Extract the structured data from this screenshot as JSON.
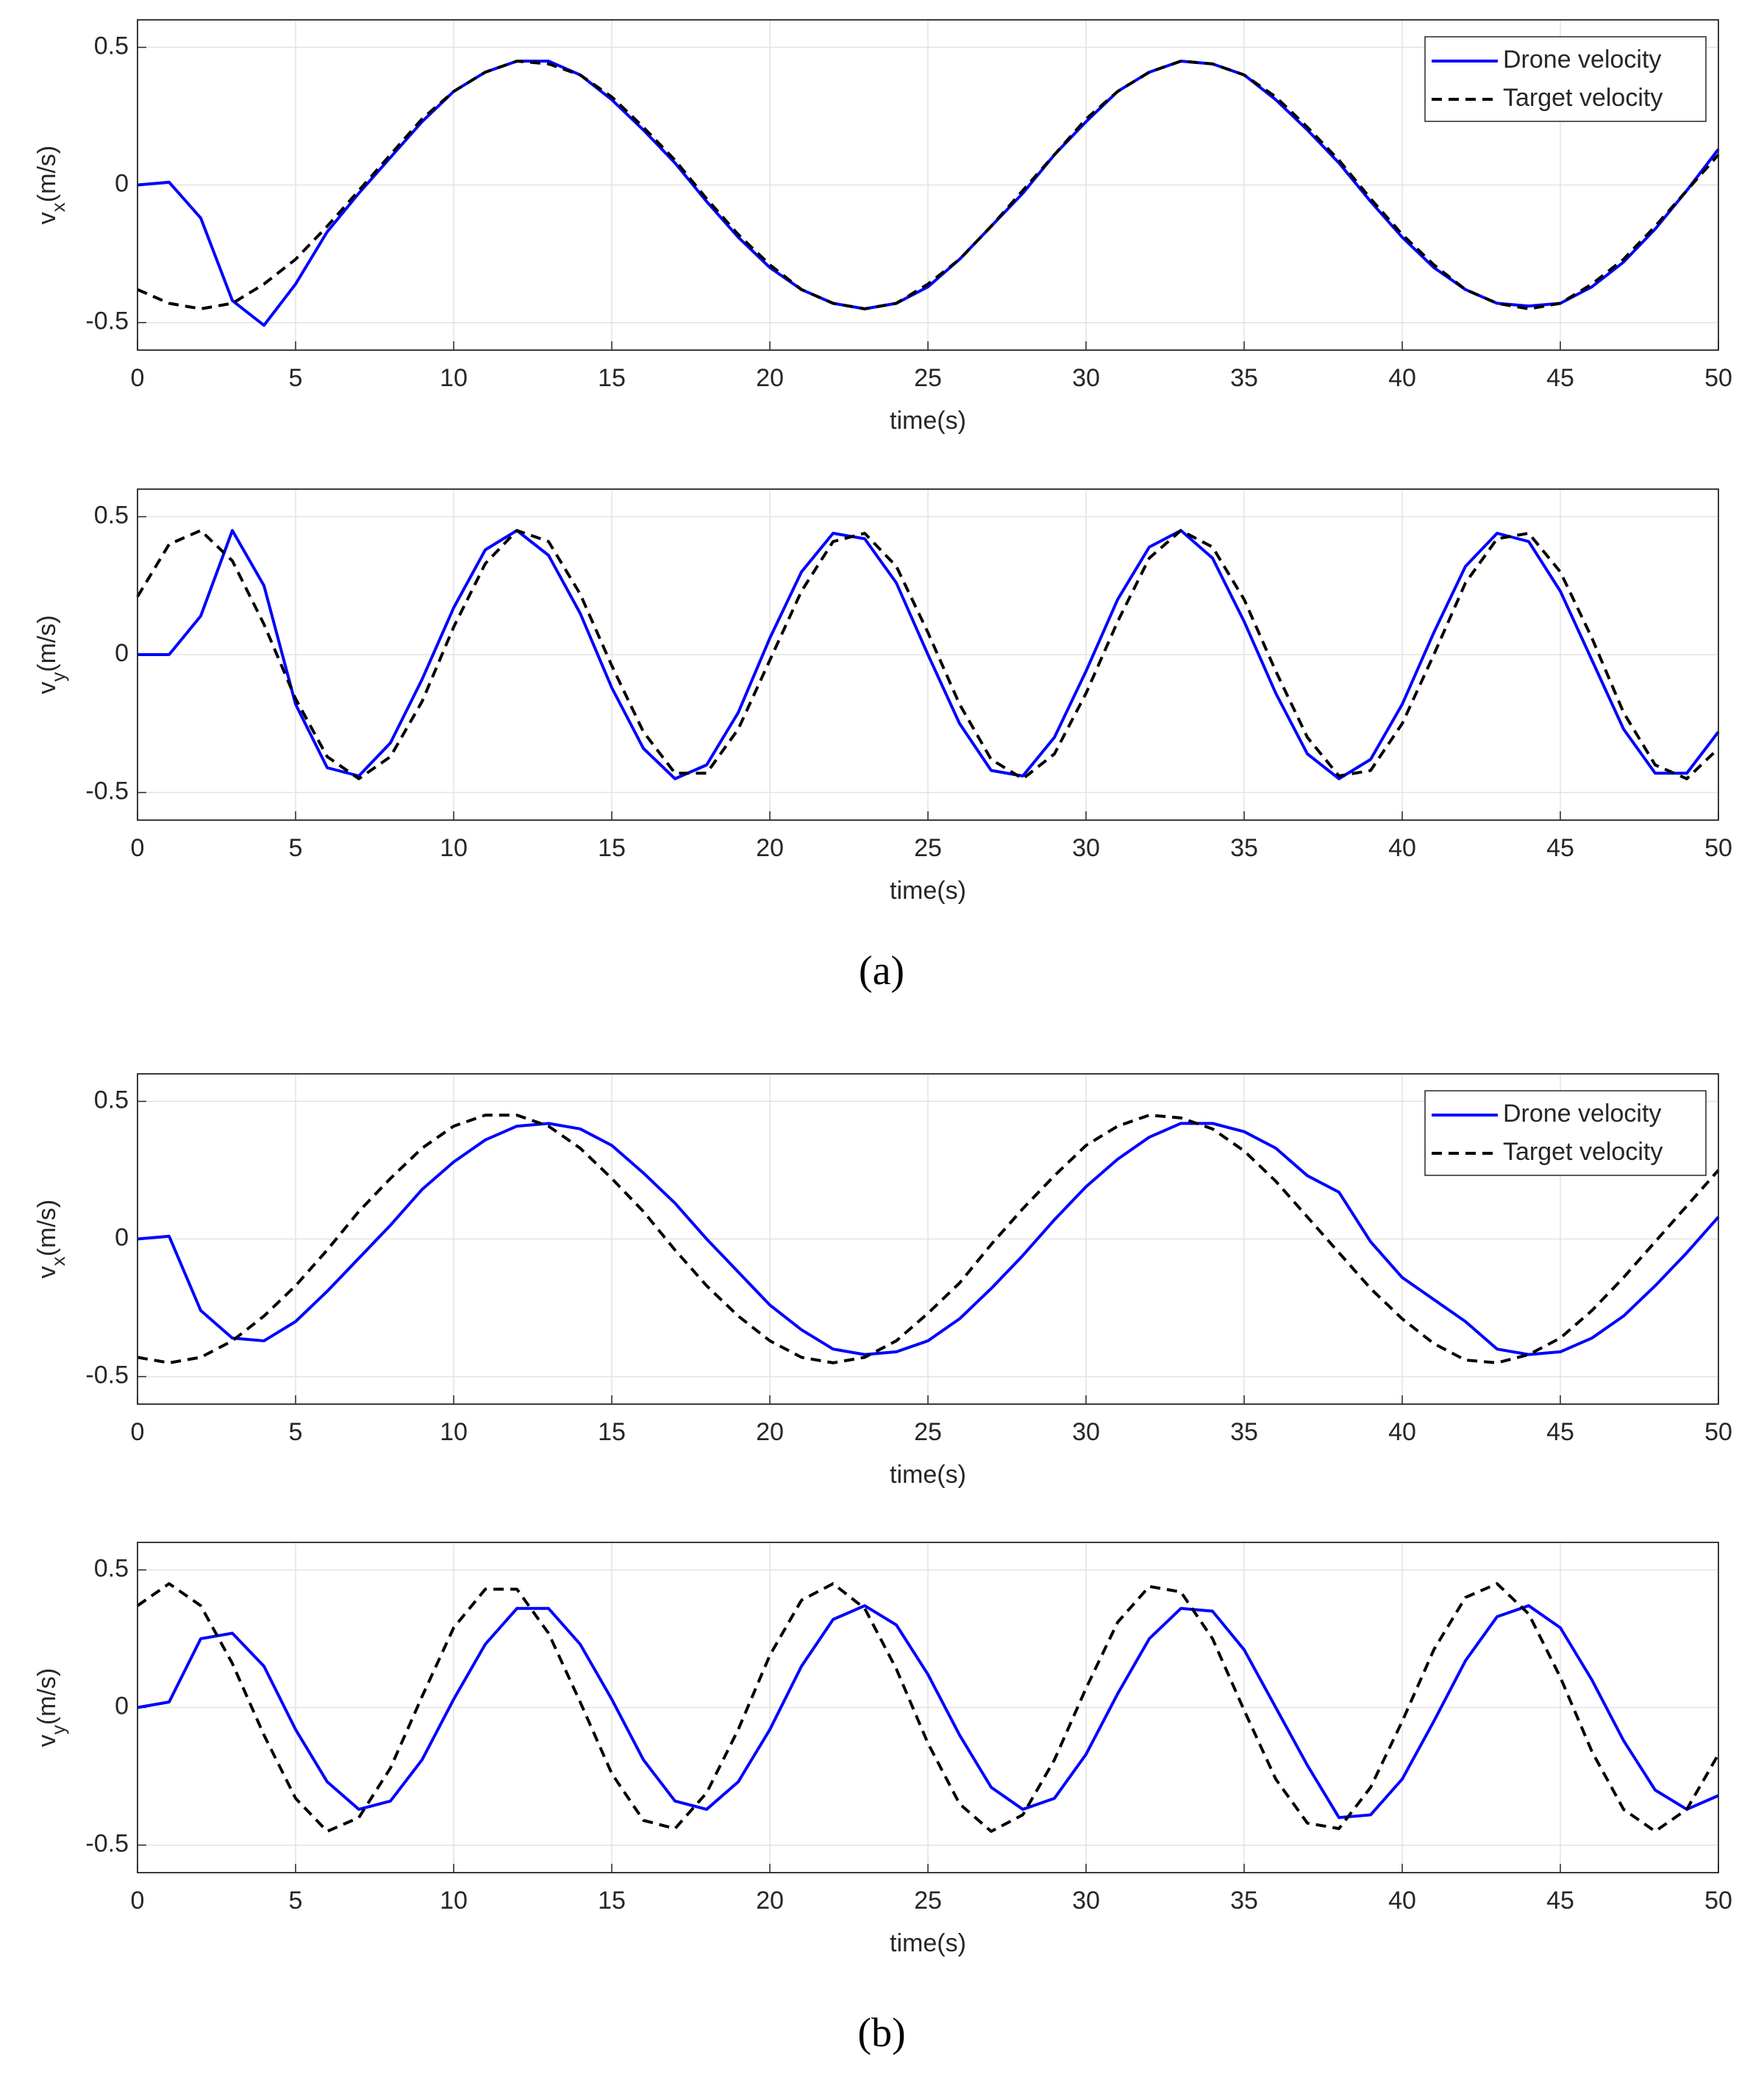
{
  "chart_data": [
    {
      "type": "line",
      "xlabel": "time(s)",
      "ylabel": [
        "v",
        "x",
        "(m/s)"
      ],
      "x": [
        0,
        1,
        2,
        3,
        4,
        5,
        6,
        7,
        8,
        9,
        10,
        11,
        12,
        13,
        14,
        15,
        16,
        17,
        18,
        19,
        20,
        21,
        22,
        23,
        24,
        25,
        26,
        27,
        28,
        29,
        30,
        31,
        32,
        33,
        34,
        35,
        36,
        37,
        38,
        39,
        40,
        41,
        42,
        43,
        44,
        45,
        46,
        47,
        48,
        49,
        50
      ],
      "xlim": [
        0,
        50
      ],
      "xticks": [
        0,
        5,
        10,
        15,
        20,
        25,
        30,
        35,
        40,
        45,
        50
      ],
      "ylim": [
        -0.6,
        0.6
      ],
      "yticks": [
        -0.5,
        0,
        0.5
      ],
      "grid": true,
      "legend": "upper right",
      "series": [
        {
          "name": "Drone velocity",
          "color": "#0000ff",
          "linestyle": "solid",
          "values": [
            0,
            0.01,
            -0.12,
            -0.42,
            -0.51,
            -0.36,
            -0.17,
            -0.03,
            0.1,
            0.23,
            0.34,
            0.41,
            0.45,
            0.45,
            0.4,
            0.31,
            0.2,
            0.08,
            -0.06,
            -0.19,
            -0.3,
            -0.38,
            -0.43,
            -0.45,
            -0.43,
            -0.37,
            -0.27,
            -0.15,
            -0.03,
            0.11,
            0.23,
            0.34,
            0.41,
            0.45,
            0.44,
            0.4,
            0.31,
            0.2,
            0.08,
            -0.06,
            -0.19,
            -0.3,
            -0.38,
            -0.43,
            -0.44,
            -0.43,
            -0.37,
            -0.28,
            -0.16,
            -0.02,
            0.13
          ]
        },
        {
          "name": "Target velocity",
          "color": "#000000",
          "linestyle": "dashed",
          "values": [
            -0.38,
            -0.43,
            -0.45,
            -0.43,
            -0.36,
            -0.27,
            -0.15,
            -0.02,
            0.11,
            0.24,
            0.34,
            0.41,
            0.45,
            0.44,
            0.4,
            0.32,
            0.21,
            0.09,
            -0.05,
            -0.18,
            -0.29,
            -0.38,
            -0.43,
            -0.45,
            -0.43,
            -0.36,
            -0.27,
            -0.15,
            -0.02,
            0.11,
            0.24,
            0.34,
            0.41,
            0.45,
            0.44,
            0.4,
            0.32,
            0.21,
            0.09,
            -0.05,
            -0.18,
            -0.29,
            -0.38,
            -0.43,
            -0.45,
            -0.43,
            -0.36,
            -0.27,
            -0.15,
            -0.02,
            0.11
          ]
        }
      ]
    },
    {
      "type": "line",
      "xlabel": "time(s)",
      "ylabel": [
        "v",
        "y",
        "(m/s)"
      ],
      "x": [
        0,
        1,
        2,
        3,
        4,
        5,
        6,
        7,
        8,
        9,
        10,
        11,
        12,
        13,
        14,
        15,
        16,
        17,
        18,
        19,
        20,
        21,
        22,
        23,
        24,
        25,
        26,
        27,
        28,
        29,
        30,
        31,
        32,
        33,
        34,
        35,
        36,
        37,
        38,
        39,
        40,
        41,
        42,
        43,
        44,
        45,
        46,
        47,
        48,
        49,
        50
      ],
      "xlim": [
        0,
        50
      ],
      "xticks": [
        0,
        5,
        10,
        15,
        20,
        25,
        30,
        35,
        40,
        45,
        50
      ],
      "ylim": [
        -0.6,
        0.6
      ],
      "yticks": [
        -0.5,
        0,
        0.5
      ],
      "grid": true,
      "series": [
        {
          "color": "#0000ff",
          "linestyle": "solid",
          "values": [
            0,
            0.0,
            0.14,
            0.45,
            0.25,
            -0.18,
            -0.41,
            -0.44,
            -0.32,
            -0.09,
            0.17,
            0.38,
            0.45,
            0.36,
            0.15,
            -0.12,
            -0.34,
            -0.45,
            -0.4,
            -0.21,
            0.06,
            0.3,
            0.44,
            0.42,
            0.26,
            0.0,
            -0.25,
            -0.42,
            -0.44,
            -0.3,
            -0.06,
            0.2,
            0.39,
            0.45,
            0.35,
            0.12,
            -0.14,
            -0.36,
            -0.45,
            -0.38,
            -0.18,
            0.08,
            0.32,
            0.44,
            0.41,
            0.23,
            -0.02,
            -0.27,
            -0.43,
            -0.43,
            -0.28
          ]
        },
        {
          "color": "#000000",
          "linestyle": "dashed",
          "values": [
            0.21,
            0.4,
            0.45,
            0.34,
            0.11,
            -0.16,
            -0.37,
            -0.45,
            -0.37,
            -0.17,
            0.1,
            0.33,
            0.45,
            0.41,
            0.22,
            -0.04,
            -0.28,
            -0.43,
            -0.43,
            -0.27,
            -0.02,
            0.23,
            0.41,
            0.44,
            0.32,
            0.08,
            -0.18,
            -0.38,
            -0.45,
            -0.36,
            -0.14,
            0.12,
            0.35,
            0.45,
            0.39,
            0.2,
            -0.06,
            -0.3,
            -0.44,
            -0.42,
            -0.25,
            0.0,
            0.26,
            0.42,
            0.44,
            0.3,
            0.06,
            -0.21,
            -0.4,
            -0.45,
            -0.34
          ]
        }
      ]
    },
    {
      "type": "line",
      "xlabel": "time(s)",
      "ylabel": [
        "v",
        "x",
        "(m/s)"
      ],
      "x": [
        0,
        1,
        2,
        3,
        4,
        5,
        6,
        7,
        8,
        9,
        10,
        11,
        12,
        13,
        14,
        15,
        16,
        17,
        18,
        19,
        20,
        21,
        22,
        23,
        24,
        25,
        26,
        27,
        28,
        29,
        30,
        31,
        32,
        33,
        34,
        35,
        36,
        37,
        38,
        39,
        40,
        41,
        42,
        43,
        44,
        45,
        46,
        47,
        48,
        49,
        50
      ],
      "xlim": [
        0,
        50
      ],
      "xticks": [
        0,
        5,
        10,
        15,
        20,
        25,
        30,
        35,
        40,
        45,
        50
      ],
      "ylim": [
        -0.6,
        0.6
      ],
      "yticks": [
        -0.5,
        0,
        0.5
      ],
      "grid": true,
      "legend": "upper right",
      "series": [
        {
          "name": "Drone velocity",
          "color": "#0000ff",
          "linestyle": "solid",
          "values": [
            0,
            0.01,
            -0.26,
            -0.36,
            -0.37,
            -0.3,
            -0.19,
            -0.07,
            0.05,
            0.18,
            0.28,
            0.36,
            0.41,
            0.42,
            0.4,
            0.34,
            0.24,
            0.13,
            0.0,
            -0.12,
            -0.24,
            -0.33,
            -0.4,
            -0.42,
            -0.41,
            -0.37,
            -0.29,
            -0.18,
            -0.06,
            0.07,
            0.19,
            0.29,
            0.37,
            0.42,
            0.42,
            0.39,
            0.33,
            0.23,
            0.17,
            -0.01,
            -0.14,
            -0.22,
            -0.3,
            -0.4,
            -0.42,
            -0.41,
            -0.36,
            -0.28,
            -0.17,
            -0.05,
            0.08
          ]
        },
        {
          "name": "Target velocity",
          "color": "#000000",
          "linestyle": "dashed",
          "values": [
            -0.43,
            -0.45,
            -0.43,
            -0.37,
            -0.28,
            -0.17,
            -0.04,
            0.1,
            0.22,
            0.33,
            0.41,
            0.45,
            0.45,
            0.41,
            0.33,
            0.22,
            0.1,
            -0.04,
            -0.17,
            -0.28,
            -0.37,
            -0.43,
            -0.45,
            -0.43,
            -0.37,
            -0.27,
            -0.16,
            -0.02,
            0.11,
            0.23,
            0.34,
            0.41,
            0.45,
            0.44,
            0.4,
            0.32,
            0.21,
            0.08,
            -0.05,
            -0.18,
            -0.29,
            -0.38,
            -0.44,
            -0.45,
            -0.42,
            -0.36,
            -0.26,
            -0.14,
            -0.01,
            0.12,
            0.25
          ]
        }
      ]
    },
    {
      "type": "line",
      "xlabel": "time(s)",
      "ylabel": [
        "v",
        "y",
        "(m/s)"
      ],
      "x": [
        0,
        1,
        2,
        3,
        4,
        5,
        6,
        7,
        8,
        9,
        10,
        11,
        12,
        13,
        14,
        15,
        16,
        17,
        18,
        19,
        20,
        21,
        22,
        23,
        24,
        25,
        26,
        27,
        28,
        29,
        30,
        31,
        32,
        33,
        34,
        35,
        36,
        37,
        38,
        39,
        40,
        41,
        42,
        43,
        44,
        45,
        46,
        47,
        48,
        49,
        50
      ],
      "xlim": [
        0,
        50
      ],
      "xticks": [
        0,
        5,
        10,
        15,
        20,
        25,
        30,
        35,
        40,
        45,
        50
      ],
      "ylim": [
        -0.6,
        0.6
      ],
      "yticks": [
        -0.5,
        0,
        0.5
      ],
      "grid": true,
      "series": [
        {
          "color": "#0000ff",
          "linestyle": "solid",
          "values": [
            0,
            0.02,
            0.25,
            0.27,
            0.15,
            -0.08,
            -0.27,
            -0.37,
            -0.34,
            -0.19,
            0.03,
            0.23,
            0.36,
            0.36,
            0.23,
            0.03,
            -0.19,
            -0.34,
            -0.37,
            -0.27,
            -0.08,
            0.15,
            0.32,
            0.37,
            0.3,
            0.12,
            -0.1,
            -0.29,
            -0.37,
            -0.33,
            -0.17,
            0.05,
            0.25,
            0.36,
            0.35,
            0.21,
            0.0,
            -0.21,
            -0.4,
            -0.39,
            -0.26,
            -0.05,
            0.17,
            0.33,
            0.37,
            0.29,
            0.1,
            -0.12,
            -0.3,
            -0.37,
            -0.32
          ]
        },
        {
          "color": "#000000",
          "linestyle": "dashed",
          "values": [
            0.37,
            0.45,
            0.37,
            0.16,
            -0.1,
            -0.33,
            -0.45,
            -0.4,
            -0.22,
            0.04,
            0.29,
            0.43,
            0.43,
            0.27,
            0.02,
            -0.24,
            -0.41,
            -0.44,
            -0.31,
            -0.08,
            0.19,
            0.39,
            0.45,
            0.36,
            0.14,
            -0.13,
            -0.35,
            -0.45,
            -0.39,
            -0.19,
            0.07,
            0.31,
            0.44,
            0.42,
            0.25,
            -0.01,
            -0.26,
            -0.42,
            -0.44,
            -0.29,
            -0.05,
            0.21,
            0.4,
            0.45,
            0.34,
            0.11,
            -0.16,
            -0.37,
            -0.45,
            -0.37,
            -0.17
          ]
        }
      ]
    }
  ],
  "panel_labels": [
    "(a)",
    "(b)"
  ]
}
